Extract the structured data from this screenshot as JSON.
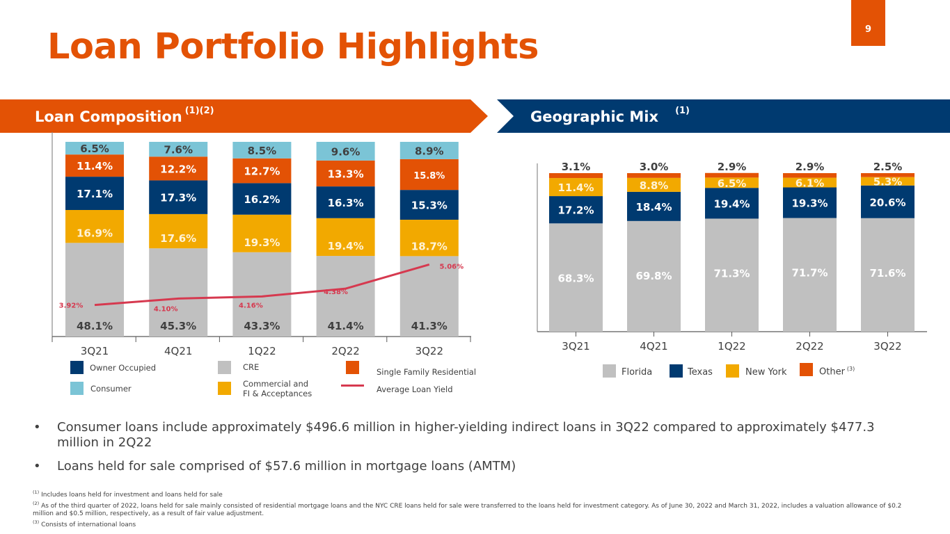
{
  "page": {
    "title": "Loan Portfolio Highlights",
    "page_number": "9"
  },
  "colors": {
    "orange": "#E35205",
    "navy": "#003A70",
    "gold": "#F2A900",
    "gray": "#C0C0C0",
    "light_blue": "#7BC4D6",
    "yield_line": "#D6394F"
  },
  "banners": {
    "left": {
      "title": "Loan Composition",
      "note": "(1)(2)"
    },
    "right": {
      "title": "Geographic Mix",
      "note": "(1)"
    }
  },
  "chart_data": [
    {
      "type": "bar",
      "stacked": true,
      "title": "Loan Composition",
      "categories": [
        "3Q21",
        "4Q21",
        "1Q22",
        "2Q22",
        "3Q22"
      ],
      "series": [
        {
          "name": "CRE",
          "color": "#C0C0C0",
          "values": [
            48.1,
            45.3,
            43.3,
            41.4,
            41.3
          ],
          "labels": [
            "48.1%",
            "45.3%",
            "43.3%",
            "41.4%",
            "41.3%"
          ]
        },
        {
          "name": "Commercial and FI & Acceptances",
          "color": "#F2A900",
          "values": [
            16.9,
            17.6,
            19.3,
            19.4,
            18.7
          ],
          "labels": [
            "16.9%",
            "17.6%",
            "19.3%",
            "19.4%",
            "18.7%"
          ]
        },
        {
          "name": "Owner Occupied",
          "color": "#003A70",
          "values": [
            17.1,
            17.3,
            16.2,
            16.3,
            15.3
          ],
          "labels": [
            "17.1%",
            "17.3%",
            "16.2%",
            "16.3%",
            "15.3%"
          ]
        },
        {
          "name": "Single Family Residential",
          "color": "#E35205",
          "values": [
            11.4,
            12.2,
            12.7,
            13.3,
            15.8
          ],
          "labels": [
            "11.4%",
            "12.2%",
            "12.7%",
            "13.3%",
            "15.8%"
          ]
        },
        {
          "name": "Consumer",
          "color": "#7BC4D6",
          "values": [
            6.5,
            7.6,
            8.5,
            9.6,
            8.9
          ],
          "labels": [
            "6.5%",
            "7.6%",
            "8.5%",
            "9.6%",
            "8.9%"
          ]
        }
      ],
      "line_series": {
        "name": "Average Loan Yield",
        "color": "#D6394F",
        "values": [
          3.92,
          4.1,
          4.16,
          4.38,
          5.06
        ],
        "labels": [
          "3.92%",
          "4.10%",
          "4.16%",
          "4.38%",
          "5.06%"
        ]
      },
      "ylim": [
        0,
        100
      ],
      "grid": false,
      "legend": {
        "placement": "bottom",
        "items": [
          {
            "label": "Owner Occupied",
            "color": "#003A70"
          },
          {
            "label": "Consumer",
            "color": "#7BC4D6"
          },
          {
            "label": "CRE",
            "color": "#C0C0C0"
          },
          {
            "label_line1": "Commercial and",
            "label_line2": "FI & Acceptances",
            "color": "#F2A900"
          },
          {
            "label": "Single Family Residential",
            "color": "#E35205"
          },
          {
            "label": "Average Loan Yield",
            "color": "#D6394F"
          }
        ]
      }
    },
    {
      "type": "bar",
      "stacked": true,
      "title": "Geographic Mix",
      "categories": [
        "3Q21",
        "4Q21",
        "1Q22",
        "2Q22",
        "3Q22"
      ],
      "series": [
        {
          "name": "Florida",
          "color": "#C0C0C0",
          "values": [
            68.3,
            69.8,
            71.3,
            71.7,
            71.6
          ],
          "labels": [
            "68.3%",
            "69.8%",
            "71.3%",
            "71.7%",
            "71.6%"
          ]
        },
        {
          "name": "Texas",
          "color": "#003A70",
          "values": [
            17.2,
            18.4,
            19.4,
            19.3,
            20.6
          ],
          "labels": [
            "17.2%",
            "18.4%",
            "19.4%",
            "19.3%",
            "20.6%"
          ]
        },
        {
          "name": "New York",
          "color": "#F2A900",
          "values": [
            11.4,
            8.8,
            6.5,
            6.1,
            5.3
          ],
          "labels": [
            "11.4%",
            "8.8%",
            "6.5%",
            "6.1%",
            "5.3%"
          ]
        },
        {
          "name": "Other",
          "color": "#E35205",
          "values": [
            3.1,
            3.0,
            2.9,
            2.9,
            2.5
          ],
          "labels": [
            "3.1%",
            "3.0%",
            "2.9%",
            "2.9%",
            "2.5%"
          ]
        }
      ],
      "ylim": [
        0,
        100
      ],
      "grid": false,
      "legend": {
        "placement": "bottom",
        "items": [
          {
            "label": "Florida",
            "color": "#C0C0C0"
          },
          {
            "label": "Texas",
            "color": "#003A70"
          },
          {
            "label": "New York",
            "color": "#F2A900"
          },
          {
            "label": "Other",
            "note": "(3)",
            "color": "#E35205"
          }
        ]
      }
    }
  ],
  "bullets": [
    "Consumer loans include approximately $496.6 million in higher-yielding indirect loans in 3Q22 compared to approximately $477.3 million in 2Q22",
    "Loans held for sale comprised of $57.6 million in mortgage loans (AMTM)"
  ],
  "bullet_symbol": "•",
  "footnotes": [
    {
      "mark": "(1)",
      "text": "Includes loans held for investment and loans held for sale"
    },
    {
      "mark": "(2)",
      "text": "As of the third quarter of 2022, loans held for sale mainly consisted of residential mortgage loans and the NYC CRE loans held for sale were transferred to the loans held for investment category. As of June 30, 2022 and March 31, 2022, includes a valuation allowance of $0.2 million and $0.5 million, respectively, as a result of fair value adjustment."
    },
    {
      "mark": "(3)",
      "text": "Consists of international loans"
    }
  ]
}
